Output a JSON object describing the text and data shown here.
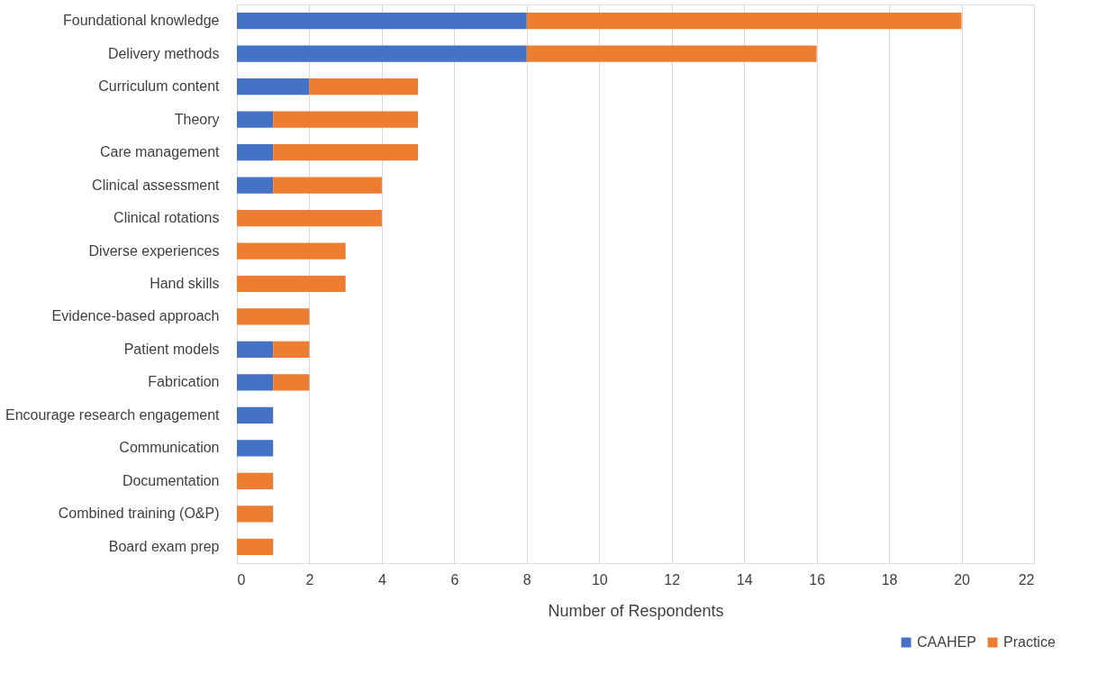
{
  "chart_data": {
    "type": "bar",
    "orientation": "horizontal",
    "stacked": true,
    "xlabel": "Number of Respondents",
    "categories": [
      "Foundational knowledge",
      "Delivery methods",
      "Curriculum content",
      "Theory",
      "Care management",
      "Clinical assessment",
      "Clinical rotations",
      "Diverse experiences",
      "Hand skills",
      "Evidence-based approach",
      "Patient models",
      "Fabrication",
      "Encourage research engagement",
      "Communication",
      "Documentation",
      "Combined training (O&P)",
      "Board exam prep"
    ],
    "series": [
      {
        "name": "CAAHEP",
        "color": "#4472c4",
        "values": [
          8,
          8,
          2,
          1,
          1,
          1,
          0,
          0,
          0,
          0,
          1,
          1,
          1,
          1,
          0,
          0,
          0
        ]
      },
      {
        "name": "Practice",
        "color": "#ed7d31",
        "values": [
          12,
          8,
          3,
          4,
          4,
          3,
          4,
          3,
          3,
          2,
          1,
          1,
          0,
          0,
          1,
          1,
          1
        ]
      }
    ],
    "xlim": [
      0,
      22
    ],
    "xticks": [
      0,
      2,
      4,
      6,
      8,
      10,
      12,
      14,
      16,
      18,
      20,
      22
    ],
    "grid": "x",
    "legend": "bottom right"
  }
}
